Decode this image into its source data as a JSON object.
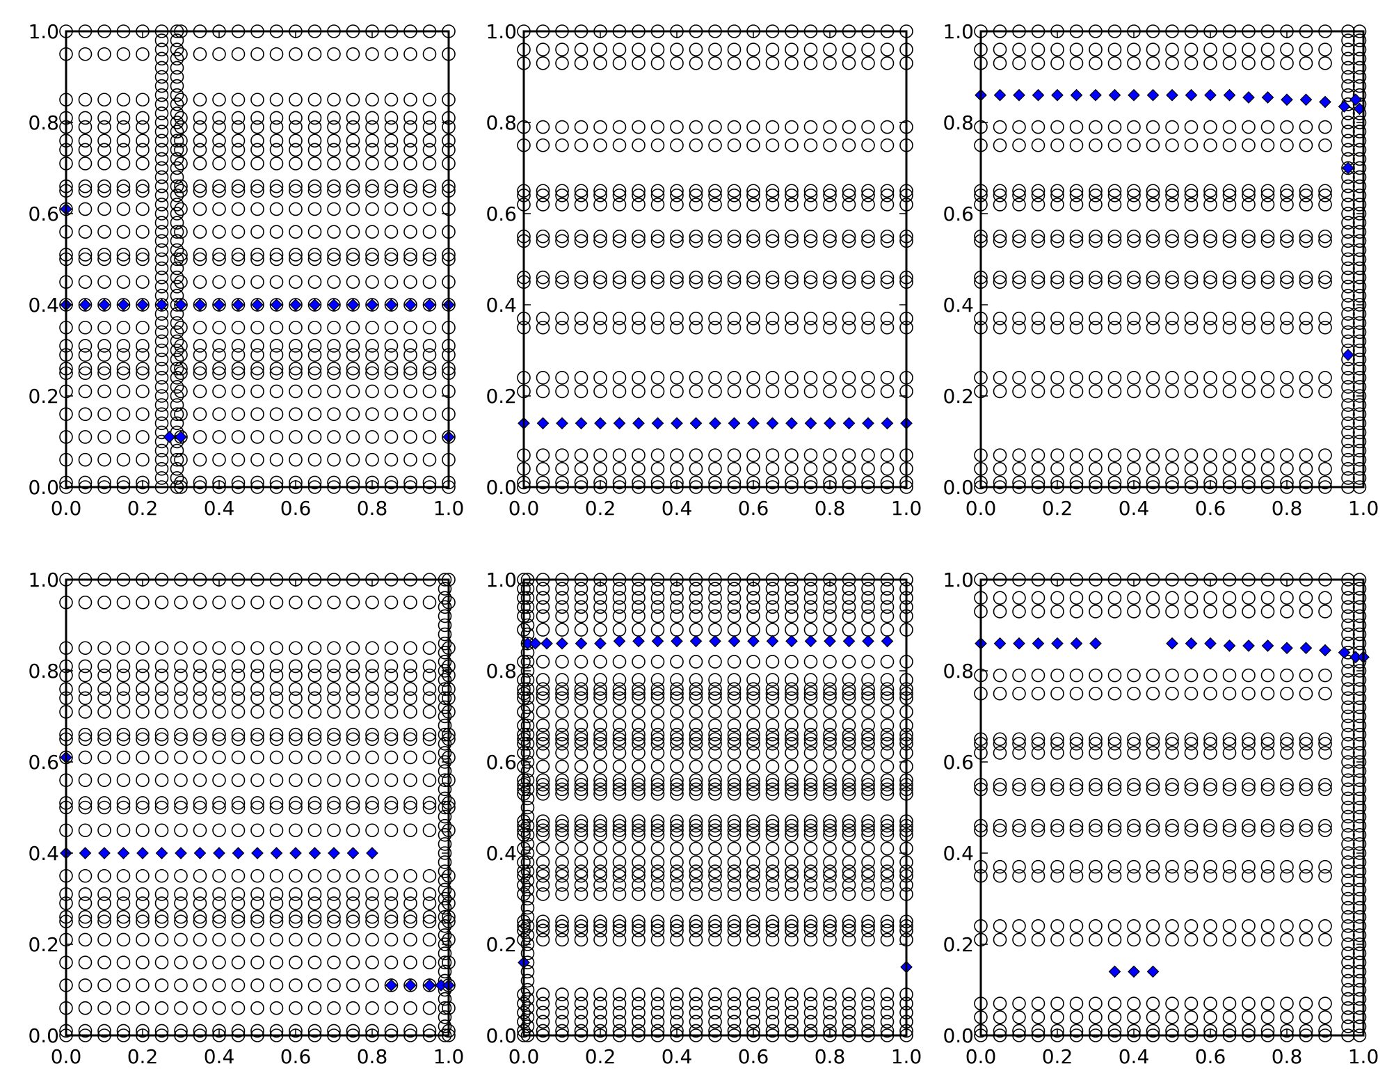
{
  "figure": {
    "layout": "2x3 grid of scatter panels",
    "background": "#ffffff"
  },
  "colors": {
    "circle_edge": "#000000",
    "diamond_fill": "#0000ff",
    "diamond_edge": "#000000",
    "axes": "#000000"
  },
  "chart_data": [
    {
      "type": "scatter",
      "panel": "top-left",
      "xlim": [
        0,
        1
      ],
      "ylim": [
        0,
        1
      ],
      "grid": false,
      "legend": "none",
      "xticks": [
        "0.0",
        "0.2",
        "0.4",
        "0.6",
        "0.8",
        "1.0"
      ],
      "yticks": [
        "0.0",
        "0.2",
        "0.4",
        "0.6",
        "0.8",
        "1.0"
      ],
      "circle_rows": [
        0.0,
        0.01,
        0.06,
        0.11,
        0.16,
        0.21,
        0.25,
        0.26,
        0.29,
        0.31,
        0.35,
        0.4,
        0.45,
        0.5,
        0.51,
        0.56,
        0.61,
        0.65,
        0.66,
        0.71,
        0.74,
        0.76,
        0.79,
        0.81,
        0.85,
        0.95,
        1.0
      ],
      "circle_x": [
        0.0,
        0.05,
        0.1,
        0.15,
        0.2,
        0.3,
        0.35,
        0.4,
        0.45,
        0.5,
        0.55,
        0.6,
        0.65,
        0.7,
        0.75,
        0.8,
        0.85,
        0.9,
        0.95,
        1.0
      ],
      "dense_column_x": [
        0.25,
        0.29
      ],
      "diamonds": [
        [
          0.0,
          0.4
        ],
        [
          0.05,
          0.4
        ],
        [
          0.1,
          0.4
        ],
        [
          0.15,
          0.4
        ],
        [
          0.2,
          0.4
        ],
        [
          0.25,
          0.4
        ],
        [
          0.3,
          0.4
        ],
        [
          0.35,
          0.4
        ],
        [
          0.4,
          0.4
        ],
        [
          0.45,
          0.4
        ],
        [
          0.5,
          0.4
        ],
        [
          0.55,
          0.4
        ],
        [
          0.6,
          0.4
        ],
        [
          0.65,
          0.4
        ],
        [
          0.7,
          0.4
        ],
        [
          0.75,
          0.4
        ],
        [
          0.8,
          0.4
        ],
        [
          0.85,
          0.4
        ],
        [
          0.9,
          0.4
        ],
        [
          0.95,
          0.4
        ],
        [
          1.0,
          0.4
        ],
        [
          0.0,
          0.61
        ],
        [
          0.27,
          0.11
        ],
        [
          0.3,
          0.11
        ],
        [
          1.0,
          0.11
        ]
      ]
    },
    {
      "type": "scatter",
      "panel": "top-middle",
      "xlim": [
        0,
        1
      ],
      "ylim": [
        0,
        1
      ],
      "grid": false,
      "legend": "none",
      "xticks": [
        "0.0",
        "0.2",
        "0.4",
        "0.6",
        "0.8",
        "1.0"
      ],
      "yticks": [
        "0.0",
        "0.2",
        "0.4",
        "0.6",
        "0.8",
        "1.0"
      ],
      "circle_rows": [
        0.0,
        0.01,
        0.04,
        0.07,
        0.21,
        0.24,
        0.35,
        0.37,
        0.45,
        0.46,
        0.54,
        0.55,
        0.62,
        0.64,
        0.65,
        0.75,
        0.79,
        0.93,
        0.96,
        1.0
      ],
      "circle_x": [
        0.0,
        0.05,
        0.1,
        0.15,
        0.2,
        0.25,
        0.3,
        0.35,
        0.4,
        0.45,
        0.5,
        0.55,
        0.6,
        0.65,
        0.7,
        0.75,
        0.8,
        0.85,
        0.9,
        0.95,
        1.0
      ],
      "dense_column_x": [],
      "diamonds": [
        [
          0.0,
          0.14
        ],
        [
          0.05,
          0.14
        ],
        [
          0.1,
          0.14
        ],
        [
          0.15,
          0.14
        ],
        [
          0.2,
          0.14
        ],
        [
          0.25,
          0.14
        ],
        [
          0.3,
          0.14
        ],
        [
          0.35,
          0.14
        ],
        [
          0.4,
          0.14
        ],
        [
          0.45,
          0.14
        ],
        [
          0.5,
          0.14
        ],
        [
          0.55,
          0.14
        ],
        [
          0.6,
          0.14
        ],
        [
          0.65,
          0.14
        ],
        [
          0.7,
          0.14
        ],
        [
          0.75,
          0.14
        ],
        [
          0.8,
          0.14
        ],
        [
          0.85,
          0.14
        ],
        [
          0.9,
          0.14
        ],
        [
          0.95,
          0.14
        ],
        [
          1.0,
          0.14
        ]
      ]
    },
    {
      "type": "scatter",
      "panel": "top-right",
      "xlim": [
        0,
        1
      ],
      "ylim": [
        0,
        1
      ],
      "grid": false,
      "legend": "none",
      "xticks": [
        "0.0",
        "0.2",
        "0.4",
        "0.6",
        "0.8",
        "1.0"
      ],
      "yticks": [
        "0.0",
        "0.2",
        "0.4",
        "0.6",
        "0.8",
        "1.0"
      ],
      "circle_rows": [
        0.0,
        0.01,
        0.04,
        0.07,
        0.21,
        0.24,
        0.35,
        0.37,
        0.45,
        0.46,
        0.54,
        0.55,
        0.62,
        0.64,
        0.65,
        0.75,
        0.79,
        0.93,
        0.96,
        1.0
      ],
      "circle_x": [
        0.0,
        0.05,
        0.1,
        0.15,
        0.2,
        0.25,
        0.3,
        0.35,
        0.4,
        0.45,
        0.5,
        0.55,
        0.6,
        0.65,
        0.7,
        0.75,
        0.8,
        0.85,
        0.9
      ],
      "dense_column_x": [
        0.96,
        0.99
      ],
      "diamonds": [
        [
          0.0,
          0.86
        ],
        [
          0.05,
          0.86
        ],
        [
          0.1,
          0.86
        ],
        [
          0.15,
          0.86
        ],
        [
          0.2,
          0.86
        ],
        [
          0.25,
          0.86
        ],
        [
          0.3,
          0.86
        ],
        [
          0.35,
          0.86
        ],
        [
          0.4,
          0.86
        ],
        [
          0.45,
          0.86
        ],
        [
          0.5,
          0.86
        ],
        [
          0.55,
          0.86
        ],
        [
          0.6,
          0.86
        ],
        [
          0.65,
          0.86
        ],
        [
          0.7,
          0.855
        ],
        [
          0.75,
          0.855
        ],
        [
          0.8,
          0.85
        ],
        [
          0.85,
          0.85
        ],
        [
          0.9,
          0.845
        ],
        [
          0.95,
          0.835
        ],
        [
          0.98,
          0.85
        ],
        [
          0.99,
          0.83
        ],
        [
          0.96,
          0.7
        ],
        [
          0.96,
          0.29
        ]
      ]
    },
    {
      "type": "scatter",
      "panel": "bottom-left",
      "xlim": [
        0,
        1
      ],
      "ylim": [
        0,
        1
      ],
      "grid": false,
      "legend": "none",
      "xticks": [
        "0.0",
        "0.2",
        "0.4",
        "0.6",
        "0.8",
        "1.0"
      ],
      "yticks": [
        "0.0",
        "0.2",
        "0.4",
        "0.6",
        "0.8",
        "1.0"
      ],
      "circle_rows": [
        0.0,
        0.01,
        0.06,
        0.11,
        0.16,
        0.21,
        0.25,
        0.26,
        0.29,
        0.31,
        0.35,
        0.45,
        0.5,
        0.51,
        0.56,
        0.61,
        0.65,
        0.66,
        0.71,
        0.74,
        0.76,
        0.79,
        0.81,
        0.85,
        0.95,
        1.0
      ],
      "circle_x": [
        0.0,
        0.05,
        0.1,
        0.15,
        0.2,
        0.25,
        0.3,
        0.35,
        0.4,
        0.45,
        0.5,
        0.55,
        0.6,
        0.65,
        0.7,
        0.75,
        0.8,
        0.85,
        0.9,
        0.95,
        1.0
      ],
      "dense_column_x": [
        0.99
      ],
      "diamonds": [
        [
          0.0,
          0.4
        ],
        [
          0.05,
          0.4
        ],
        [
          0.1,
          0.4
        ],
        [
          0.15,
          0.4
        ],
        [
          0.2,
          0.4
        ],
        [
          0.25,
          0.4
        ],
        [
          0.3,
          0.4
        ],
        [
          0.35,
          0.4
        ],
        [
          0.4,
          0.4
        ],
        [
          0.45,
          0.4
        ],
        [
          0.5,
          0.4
        ],
        [
          0.55,
          0.4
        ],
        [
          0.6,
          0.4
        ],
        [
          0.65,
          0.4
        ],
        [
          0.7,
          0.4
        ],
        [
          0.75,
          0.4
        ],
        [
          0.8,
          0.4
        ],
        [
          0.0,
          0.61
        ],
        [
          0.85,
          0.11
        ],
        [
          0.9,
          0.11
        ],
        [
          0.95,
          0.11
        ],
        [
          0.98,
          0.11
        ],
        [
          1.0,
          0.11
        ]
      ]
    },
    {
      "type": "scatter",
      "panel": "bottom-middle",
      "xlim": [
        0,
        1
      ],
      "ylim": [
        0,
        1
      ],
      "grid": false,
      "legend": "none",
      "xticks": [
        "0.0",
        "0.2",
        "0.4",
        "0.6",
        "0.8",
        "1.0"
      ],
      "yticks": [
        "0.0",
        "0.2",
        "0.4",
        "0.6",
        "0.8",
        "1.0"
      ],
      "circle_rows": [
        0.0,
        0.01,
        0.03,
        0.05,
        0.07,
        0.09,
        0.21,
        0.23,
        0.24,
        0.25,
        0.31,
        0.33,
        0.35,
        0.36,
        0.38,
        0.41,
        0.44,
        0.45,
        0.46,
        0.47,
        0.53,
        0.54,
        0.55,
        0.56,
        0.59,
        0.62,
        0.64,
        0.65,
        0.66,
        0.68,
        0.71,
        0.74,
        0.75,
        0.76,
        0.78,
        0.82,
        0.89,
        0.92,
        0.94,
        0.96,
        0.98,
        1.0
      ],
      "circle_x": [
        0.0,
        0.05,
        0.1,
        0.15,
        0.2,
        0.25,
        0.3,
        0.35,
        0.4,
        0.45,
        0.5,
        0.55,
        0.6,
        0.65,
        0.7,
        0.75,
        0.8,
        0.85,
        0.9,
        0.95,
        1.0
      ],
      "dense_column_x": [
        0.01
      ],
      "diamonds": [
        [
          0.01,
          0.86
        ],
        [
          0.03,
          0.86
        ],
        [
          0.06,
          0.86
        ],
        [
          0.1,
          0.86
        ],
        [
          0.15,
          0.86
        ],
        [
          0.2,
          0.86
        ],
        [
          0.25,
          0.865
        ],
        [
          0.3,
          0.865
        ],
        [
          0.35,
          0.865
        ],
        [
          0.4,
          0.865
        ],
        [
          0.45,
          0.865
        ],
        [
          0.5,
          0.865
        ],
        [
          0.55,
          0.865
        ],
        [
          0.6,
          0.865
        ],
        [
          0.65,
          0.865
        ],
        [
          0.7,
          0.865
        ],
        [
          0.75,
          0.865
        ],
        [
          0.8,
          0.865
        ],
        [
          0.85,
          0.865
        ],
        [
          0.9,
          0.865
        ],
        [
          0.95,
          0.865
        ],
        [
          0.0,
          0.16
        ],
        [
          1.0,
          0.15
        ]
      ]
    },
    {
      "type": "scatter",
      "panel": "bottom-right",
      "xlim": [
        0,
        1
      ],
      "ylim": [
        0,
        1
      ],
      "grid": false,
      "legend": "none",
      "xticks": [
        "0.0",
        "0.2",
        "0.4",
        "0.6",
        "0.8",
        "1.0"
      ],
      "yticks": [
        "0.0",
        "0.2",
        "0.4",
        "0.6",
        "0.8",
        "1.0"
      ],
      "circle_rows": [
        0.0,
        0.01,
        0.04,
        0.07,
        0.21,
        0.24,
        0.35,
        0.37,
        0.45,
        0.46,
        0.54,
        0.55,
        0.62,
        0.64,
        0.65,
        0.75,
        0.79,
        0.93,
        0.96,
        1.0
      ],
      "circle_x": [
        0.0,
        0.05,
        0.1,
        0.15,
        0.2,
        0.25,
        0.3,
        0.35,
        0.4,
        0.45,
        0.5,
        0.55,
        0.6,
        0.65,
        0.7,
        0.75,
        0.8,
        0.85,
        0.9
      ],
      "dense_column_x": [
        0.96,
        0.99
      ],
      "diamonds": [
        [
          0.0,
          0.86
        ],
        [
          0.05,
          0.86
        ],
        [
          0.1,
          0.86
        ],
        [
          0.15,
          0.86
        ],
        [
          0.2,
          0.86
        ],
        [
          0.25,
          0.86
        ],
        [
          0.3,
          0.86
        ],
        [
          0.5,
          0.86
        ],
        [
          0.55,
          0.86
        ],
        [
          0.6,
          0.86
        ],
        [
          0.65,
          0.855
        ],
        [
          0.7,
          0.855
        ],
        [
          0.75,
          0.855
        ],
        [
          0.8,
          0.85
        ],
        [
          0.85,
          0.85
        ],
        [
          0.9,
          0.845
        ],
        [
          0.95,
          0.84
        ],
        [
          0.98,
          0.83
        ],
        [
          1.0,
          0.83
        ],
        [
          0.35,
          0.14
        ],
        [
          0.4,
          0.14
        ],
        [
          0.45,
          0.14
        ]
      ]
    }
  ]
}
